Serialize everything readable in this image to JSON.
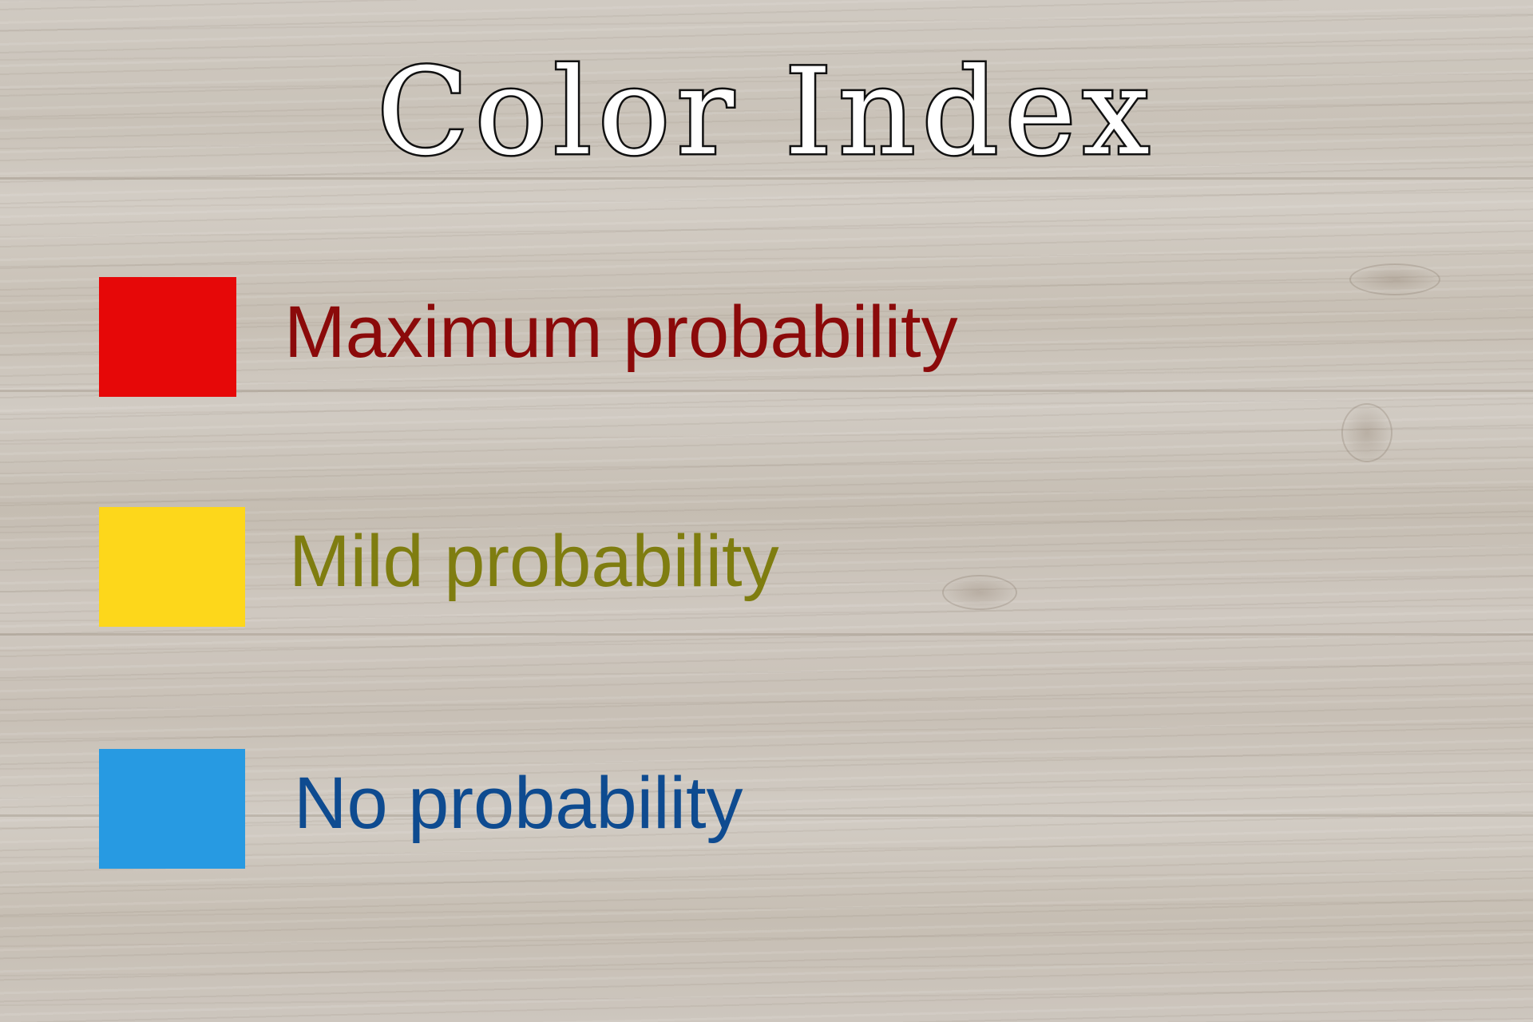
{
  "title": "Color Index",
  "legend": [
    {
      "label": "Maximum probability",
      "swatch_color": "#e60808",
      "text_color": "#8b0a0a"
    },
    {
      "label": "Mild probability",
      "swatch_color": "#fdd71b",
      "text_color": "#7f7d10"
    },
    {
      "label": "No probability",
      "swatch_color": "#279ae2",
      "text_color": "#0e4b90"
    }
  ],
  "background": {
    "texture": "light grey wood planks"
  }
}
